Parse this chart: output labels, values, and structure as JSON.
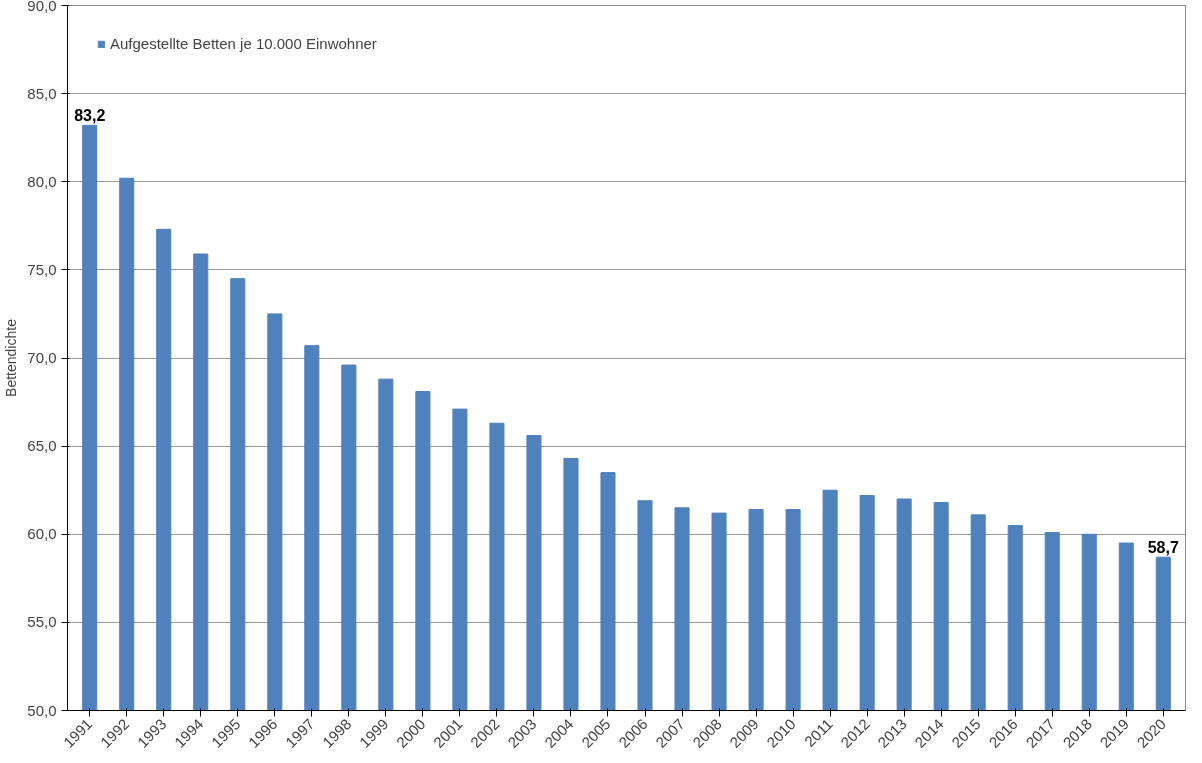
{
  "chart_data": {
    "type": "bar",
    "ylabel": "Bettendichte",
    "categories": [
      "1991",
      "1992",
      "1993",
      "1994",
      "1995",
      "1996",
      "1997",
      "1998",
      "1999",
      "2000",
      "2001",
      "2002",
      "2003",
      "2004",
      "2005",
      "2006",
      "2007",
      "2008",
      "2009",
      "2010",
      "2011",
      "2012",
      "2013",
      "2014",
      "2015",
      "2016",
      "2017",
      "2018",
      "2019",
      "2020"
    ],
    "series": [
      {
        "name": "Aufgestellte Betten je 10.000 Einwohner",
        "color": "#4f81bd",
        "values": [
          83.2,
          80.2,
          77.3,
          75.9,
          74.5,
          72.5,
          70.7,
          69.6,
          68.8,
          68.1,
          67.1,
          66.3,
          65.6,
          64.3,
          63.5,
          61.9,
          61.5,
          61.2,
          61.4,
          61.4,
          62.5,
          62.2,
          62.0,
          61.8,
          61.1,
          60.5,
          60.1,
          60.0,
          59.5,
          58.7
        ],
        "value_labels": [
          "83,2",
          null,
          null,
          null,
          null,
          null,
          null,
          null,
          null,
          null,
          null,
          null,
          null,
          null,
          null,
          null,
          null,
          null,
          null,
          null,
          null,
          null,
          null,
          null,
          null,
          null,
          null,
          null,
          null,
          "58,7"
        ]
      }
    ],
    "ylim": [
      50,
      90
    ],
    "yticks": [
      {
        "value": 50,
        "label": "50,0"
      },
      {
        "value": 55,
        "label": "55,0"
      },
      {
        "value": 60,
        "label": "60,0"
      },
      {
        "value": 65,
        "label": "65,0"
      },
      {
        "value": 70,
        "label": "70,0"
      },
      {
        "value": 75,
        "label": "75,0"
      },
      {
        "value": 80,
        "label": "80,0"
      },
      {
        "value": 85,
        "label": "85,0"
      },
      {
        "value": 90,
        "label": "90,0"
      }
    ],
    "grid": "y",
    "legend": "top left"
  }
}
